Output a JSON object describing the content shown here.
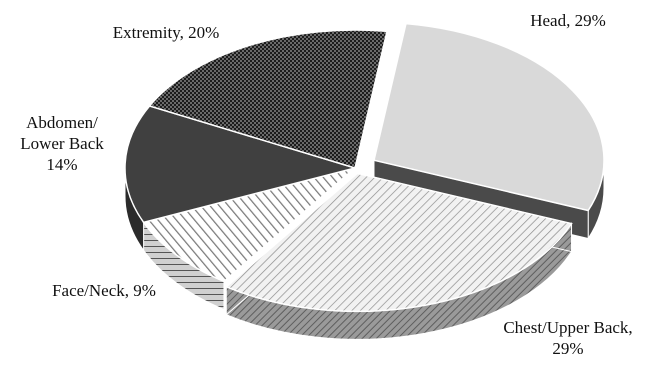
{
  "chart_data": {
    "type": "pie",
    "style": "3d-exploded",
    "title": "",
    "slices": [
      {
        "label": "Head",
        "value": 29,
        "display": "Head, 29%",
        "pattern": "light-gray-solid",
        "color": "#d9d9d9",
        "side": "#4a4a4a"
      },
      {
        "label": "Chest/Upper Back",
        "value": 29,
        "display_lines": [
          "Chest/Upper Back,",
          "29%"
        ],
        "pattern": "diagonal-hatch",
        "color": "#bdbdbd",
        "side": "#8a8a8a"
      },
      {
        "label": "Face/Neck",
        "value": 9,
        "display": "Face/Neck, 9%",
        "pattern": "diagonal-stripes",
        "color": "#9e9e9e",
        "side": "#7a7a7a"
      },
      {
        "label": "Abdomen/Lower Back",
        "value": 14,
        "display_lines": [
          "Abdomen/",
          "Lower Back",
          "14%"
        ],
        "pattern": "dark-solid",
        "color": "#3d3d3d",
        "side": "#2a2a2a"
      },
      {
        "label": "Extremity",
        "value": 20,
        "display": "Extremity, 20%",
        "pattern": "dark-checker",
        "color": "#262626",
        "side": "#1a1a1a"
      }
    ]
  }
}
